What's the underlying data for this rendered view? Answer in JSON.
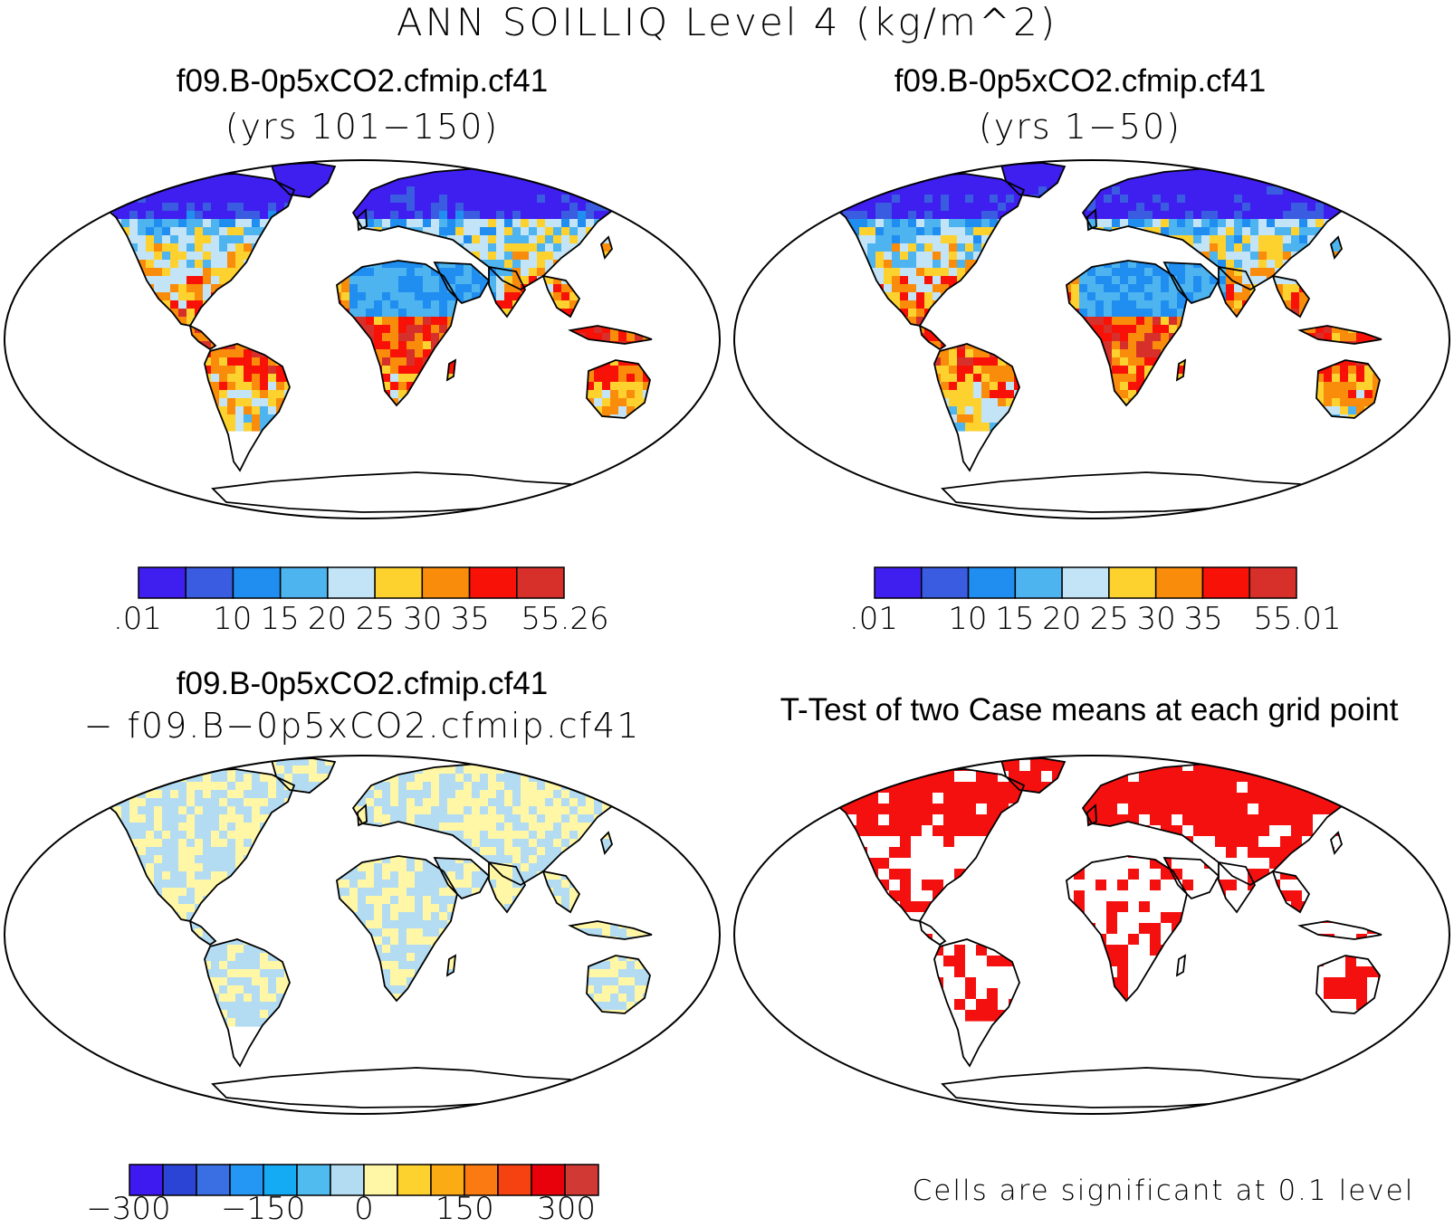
{
  "title": "ANN SOILLIQ Level 4 (kg/m^2)",
  "panels": {
    "top_left": {
      "case": "f09.B-0p5xCO2.cfmip.cf41",
      "years": "(yrs 101−150)",
      "colorbar": {
        "colors": [
          "#3f1ef0",
          "#3a5ce0",
          "#1f8ef0",
          "#4db4f0",
          "#c3e4f6",
          "#fdd12e",
          "#fa8c0c",
          "#f81106",
          "#d7302b"
        ],
        "labels": [
          ".01",
          "10",
          "15",
          "20",
          "25",
          "30",
          "35",
          "55.26"
        ]
      }
    },
    "top_right": {
      "case": "f09.B-0p5xCO2.cfmip.cf41",
      "years": "(yrs 1−50)",
      "colorbar": {
        "colors": [
          "#3f1ef0",
          "#3a5ce0",
          "#1f8ef0",
          "#4db4f0",
          "#c3e4f6",
          "#fdd12e",
          "#fa8c0c",
          "#f81106",
          "#d7302b"
        ],
        "labels": [
          ".01",
          "10",
          "15",
          "20",
          "25",
          "30",
          "35",
          "55.01"
        ]
      }
    },
    "bottom_left": {
      "case_a": "f09.B-0p5xCO2.cfmip.cf41",
      "case_b": "− f09.B−0p5xCO2.cfmip.cf41",
      "colorbar": {
        "colors": [
          "#3e19f0",
          "#2b44d6",
          "#3a6ee3",
          "#2496f4",
          "#14aaf4",
          "#50bbee",
          "#b3dcf3",
          "#fff6a6",
          "#fdd12e",
          "#fbab14",
          "#fb7a12",
          "#f64110",
          "#e8000a",
          "#d13a34"
        ],
        "labels": [
          "−300",
          "−150",
          "0",
          "150",
          "300"
        ]
      }
    },
    "bottom_right": {
      "title": "T-Test of two Case means at each grid point",
      "note": "Cells are significant at 0.1 level",
      "sig_color": "#f51010"
    }
  }
}
